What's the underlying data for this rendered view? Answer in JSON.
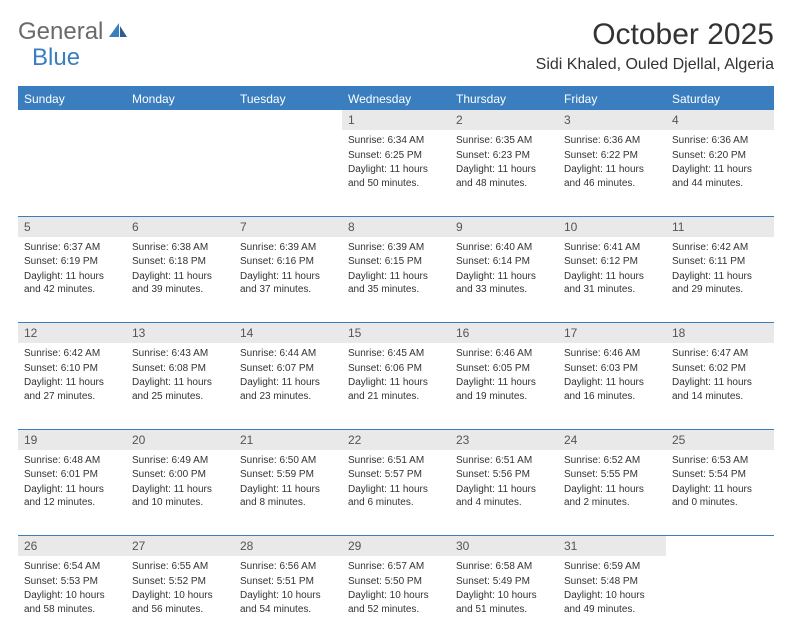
{
  "logo": {
    "text1": "General",
    "text2": "Blue"
  },
  "title": "October 2025",
  "location": "Sidi Khaled, Ouled Djellal, Algeria",
  "colors": {
    "header_bg": "#3a7ebf",
    "daynum_bg": "#e9e9e9",
    "text": "#333333"
  },
  "weekday_labels": [
    "Sunday",
    "Monday",
    "Tuesday",
    "Wednesday",
    "Thursday",
    "Friday",
    "Saturday"
  ],
  "weeks": [
    [
      null,
      null,
      null,
      {
        "n": "1",
        "sr": "6:34 AM",
        "ss": "6:25 PM",
        "dl": "11 hours and 50 minutes."
      },
      {
        "n": "2",
        "sr": "6:35 AM",
        "ss": "6:23 PM",
        "dl": "11 hours and 48 minutes."
      },
      {
        "n": "3",
        "sr": "6:36 AM",
        "ss": "6:22 PM",
        "dl": "11 hours and 46 minutes."
      },
      {
        "n": "4",
        "sr": "6:36 AM",
        "ss": "6:20 PM",
        "dl": "11 hours and 44 minutes."
      }
    ],
    [
      {
        "n": "5",
        "sr": "6:37 AM",
        "ss": "6:19 PM",
        "dl": "11 hours and 42 minutes."
      },
      {
        "n": "6",
        "sr": "6:38 AM",
        "ss": "6:18 PM",
        "dl": "11 hours and 39 minutes."
      },
      {
        "n": "7",
        "sr": "6:39 AM",
        "ss": "6:16 PM",
        "dl": "11 hours and 37 minutes."
      },
      {
        "n": "8",
        "sr": "6:39 AM",
        "ss": "6:15 PM",
        "dl": "11 hours and 35 minutes."
      },
      {
        "n": "9",
        "sr": "6:40 AM",
        "ss": "6:14 PM",
        "dl": "11 hours and 33 minutes."
      },
      {
        "n": "10",
        "sr": "6:41 AM",
        "ss": "6:12 PM",
        "dl": "11 hours and 31 minutes."
      },
      {
        "n": "11",
        "sr": "6:42 AM",
        "ss": "6:11 PM",
        "dl": "11 hours and 29 minutes."
      }
    ],
    [
      {
        "n": "12",
        "sr": "6:42 AM",
        "ss": "6:10 PM",
        "dl": "11 hours and 27 minutes."
      },
      {
        "n": "13",
        "sr": "6:43 AM",
        "ss": "6:08 PM",
        "dl": "11 hours and 25 minutes."
      },
      {
        "n": "14",
        "sr": "6:44 AM",
        "ss": "6:07 PM",
        "dl": "11 hours and 23 minutes."
      },
      {
        "n": "15",
        "sr": "6:45 AM",
        "ss": "6:06 PM",
        "dl": "11 hours and 21 minutes."
      },
      {
        "n": "16",
        "sr": "6:46 AM",
        "ss": "6:05 PM",
        "dl": "11 hours and 19 minutes."
      },
      {
        "n": "17",
        "sr": "6:46 AM",
        "ss": "6:03 PM",
        "dl": "11 hours and 16 minutes."
      },
      {
        "n": "18",
        "sr": "6:47 AM",
        "ss": "6:02 PM",
        "dl": "11 hours and 14 minutes."
      }
    ],
    [
      {
        "n": "19",
        "sr": "6:48 AM",
        "ss": "6:01 PM",
        "dl": "11 hours and 12 minutes."
      },
      {
        "n": "20",
        "sr": "6:49 AM",
        "ss": "6:00 PM",
        "dl": "11 hours and 10 minutes."
      },
      {
        "n": "21",
        "sr": "6:50 AM",
        "ss": "5:59 PM",
        "dl": "11 hours and 8 minutes."
      },
      {
        "n": "22",
        "sr": "6:51 AM",
        "ss": "5:57 PM",
        "dl": "11 hours and 6 minutes."
      },
      {
        "n": "23",
        "sr": "6:51 AM",
        "ss": "5:56 PM",
        "dl": "11 hours and 4 minutes."
      },
      {
        "n": "24",
        "sr": "6:52 AM",
        "ss": "5:55 PM",
        "dl": "11 hours and 2 minutes."
      },
      {
        "n": "25",
        "sr": "6:53 AM",
        "ss": "5:54 PM",
        "dl": "11 hours and 0 minutes."
      }
    ],
    [
      {
        "n": "26",
        "sr": "6:54 AM",
        "ss": "5:53 PM",
        "dl": "10 hours and 58 minutes."
      },
      {
        "n": "27",
        "sr": "6:55 AM",
        "ss": "5:52 PM",
        "dl": "10 hours and 56 minutes."
      },
      {
        "n": "28",
        "sr": "6:56 AM",
        "ss": "5:51 PM",
        "dl": "10 hours and 54 minutes."
      },
      {
        "n": "29",
        "sr": "6:57 AM",
        "ss": "5:50 PM",
        "dl": "10 hours and 52 minutes."
      },
      {
        "n": "30",
        "sr": "6:58 AM",
        "ss": "5:49 PM",
        "dl": "10 hours and 51 minutes."
      },
      {
        "n": "31",
        "sr": "6:59 AM",
        "ss": "5:48 PM",
        "dl": "10 hours and 49 minutes."
      },
      null
    ]
  ],
  "labels": {
    "sunrise": "Sunrise:",
    "sunset": "Sunset:",
    "daylight": "Daylight:"
  }
}
